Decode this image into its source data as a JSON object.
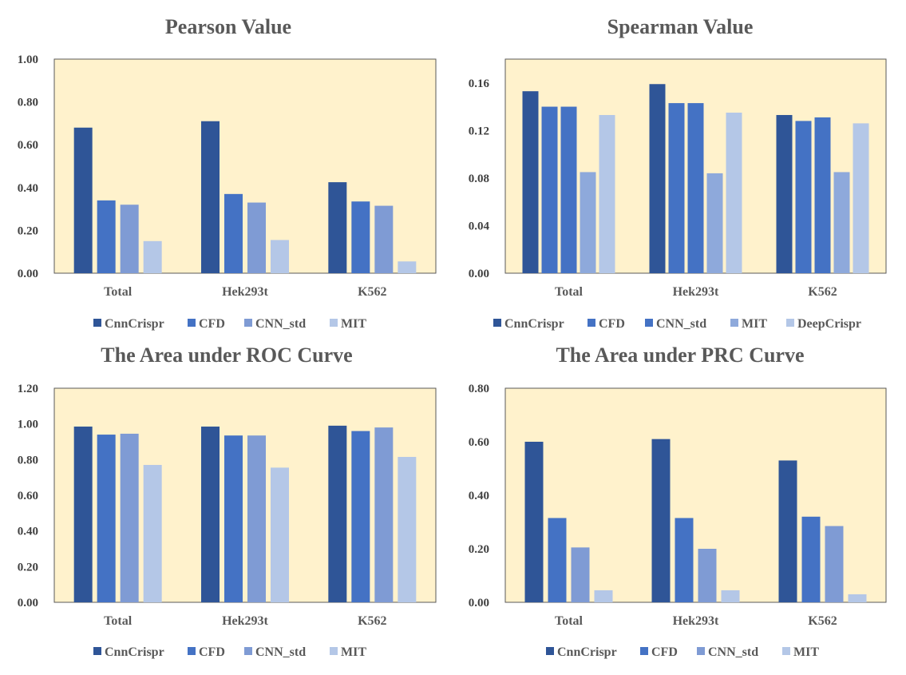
{
  "colors": {
    "plot_bg": "#FFF2CC",
    "plot_border": "#595959",
    "series": [
      "#2F5597",
      "#4472C4",
      "#7F9BD4",
      "#B4C7E7"
    ],
    "series5": [
      "#2F5597",
      "#4472C4",
      "#4472C4",
      "#8EA9DB",
      "#B4C7E7"
    ]
  },
  "chart_data": [
    {
      "type": "bar",
      "title": "Pearson Value",
      "categories": [
        "Total",
        "Hek293t",
        "K562"
      ],
      "ylim": [
        0,
        1.0
      ],
      "yticks": [
        "0.00",
        "0.20",
        "0.40",
        "0.60",
        "0.80",
        "1.00"
      ],
      "series": [
        {
          "name": "CnnCrispr",
          "values": [
            0.68,
            0.71,
            0.425
          ]
        },
        {
          "name": "CFD",
          "values": [
            0.34,
            0.37,
            0.335
          ]
        },
        {
          "name": "CNN_std",
          "values": [
            0.32,
            0.33,
            0.315
          ]
        },
        {
          "name": "MIT",
          "values": [
            0.15,
            0.155,
            0.055
          ]
        }
      ]
    },
    {
      "type": "bar",
      "title": "Spearman Value",
      "categories": [
        "Total",
        "Hek293t",
        "K562"
      ],
      "ylim": [
        0,
        0.18
      ],
      "yticks": [
        "0.00",
        "0.04",
        "0.08",
        "0.12",
        "0.16"
      ],
      "series": [
        {
          "name": "CnnCrispr",
          "values": [
            0.153,
            0.159,
            0.133
          ]
        },
        {
          "name": "CFD",
          "values": [
            0.14,
            0.143,
            0.128
          ]
        },
        {
          "name": "CNN_std",
          "values": [
            0.14,
            0.143,
            0.131
          ]
        },
        {
          "name": "MIT",
          "values": [
            0.085,
            0.084,
            0.085
          ]
        },
        {
          "name": "DeepCrispr",
          "values": [
            0.133,
            0.135,
            0.126
          ]
        }
      ]
    },
    {
      "type": "bar",
      "title": "The Area under ROC Curve",
      "categories": [
        "Total",
        "Hek293t",
        "K562"
      ],
      "ylim": [
        0,
        1.2
      ],
      "yticks": [
        "0.00",
        "0.20",
        "0.40",
        "0.60",
        "0.80",
        "1.00",
        "1.20"
      ],
      "series": [
        {
          "name": "CnnCrispr",
          "values": [
            0.985,
            0.985,
            0.99
          ]
        },
        {
          "name": "CFD",
          "values": [
            0.94,
            0.935,
            0.96
          ]
        },
        {
          "name": "CNN_std",
          "values": [
            0.945,
            0.935,
            0.98
          ]
        },
        {
          "name": "MIT",
          "values": [
            0.77,
            0.755,
            0.815
          ]
        }
      ]
    },
    {
      "type": "bar",
      "title": "The Area under PRC Curve",
      "categories": [
        "Total",
        "Hek293t",
        "K562"
      ],
      "ylim": [
        0,
        0.8
      ],
      "yticks": [
        "0.00",
        "0.20",
        "0.40",
        "0.60",
        "0.80"
      ],
      "series": [
        {
          "name": "CnnCrispr",
          "values": [
            0.6,
            0.61,
            0.53
          ]
        },
        {
          "name": "CFD",
          "values": [
            0.315,
            0.315,
            0.32
          ]
        },
        {
          "name": "CNN_std",
          "values": [
            0.205,
            0.2,
            0.285
          ]
        },
        {
          "name": "MIT",
          "values": [
            0.045,
            0.045,
            0.03
          ]
        }
      ]
    }
  ]
}
